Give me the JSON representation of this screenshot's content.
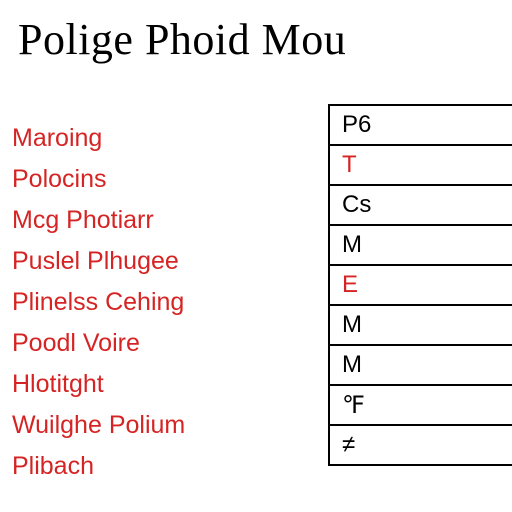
{
  "title": "Polige Phoid Mou",
  "left_items": [
    "Maroing",
    "Polocins",
    "Mcg Photiarr",
    "Puslel Plhugee",
    "Plinelss Cehing",
    "Poodl Voire",
    "Hlotitght",
    "Wuilghe Polium",
    "Plibach"
  ],
  "table_cells": [
    {
      "text": "P6",
      "red": false
    },
    {
      "text": "T",
      "red": true
    },
    {
      "text": "Cs",
      "red": false
    },
    {
      "text": "M",
      "red": false
    },
    {
      "text": "E",
      "red": true
    },
    {
      "text": "M",
      "red": false
    },
    {
      "text": "M",
      "red": false
    },
    {
      "text": "℉",
      "red": false
    },
    {
      "text": "≠",
      "red": false
    }
  ],
  "colors": {
    "red_text": "#d62424",
    "black": "#000000",
    "background": "#ffffff"
  },
  "title_fontsize": 44,
  "list_fontsize": 25,
  "cell_fontsize": 24,
  "line_height": 41
}
